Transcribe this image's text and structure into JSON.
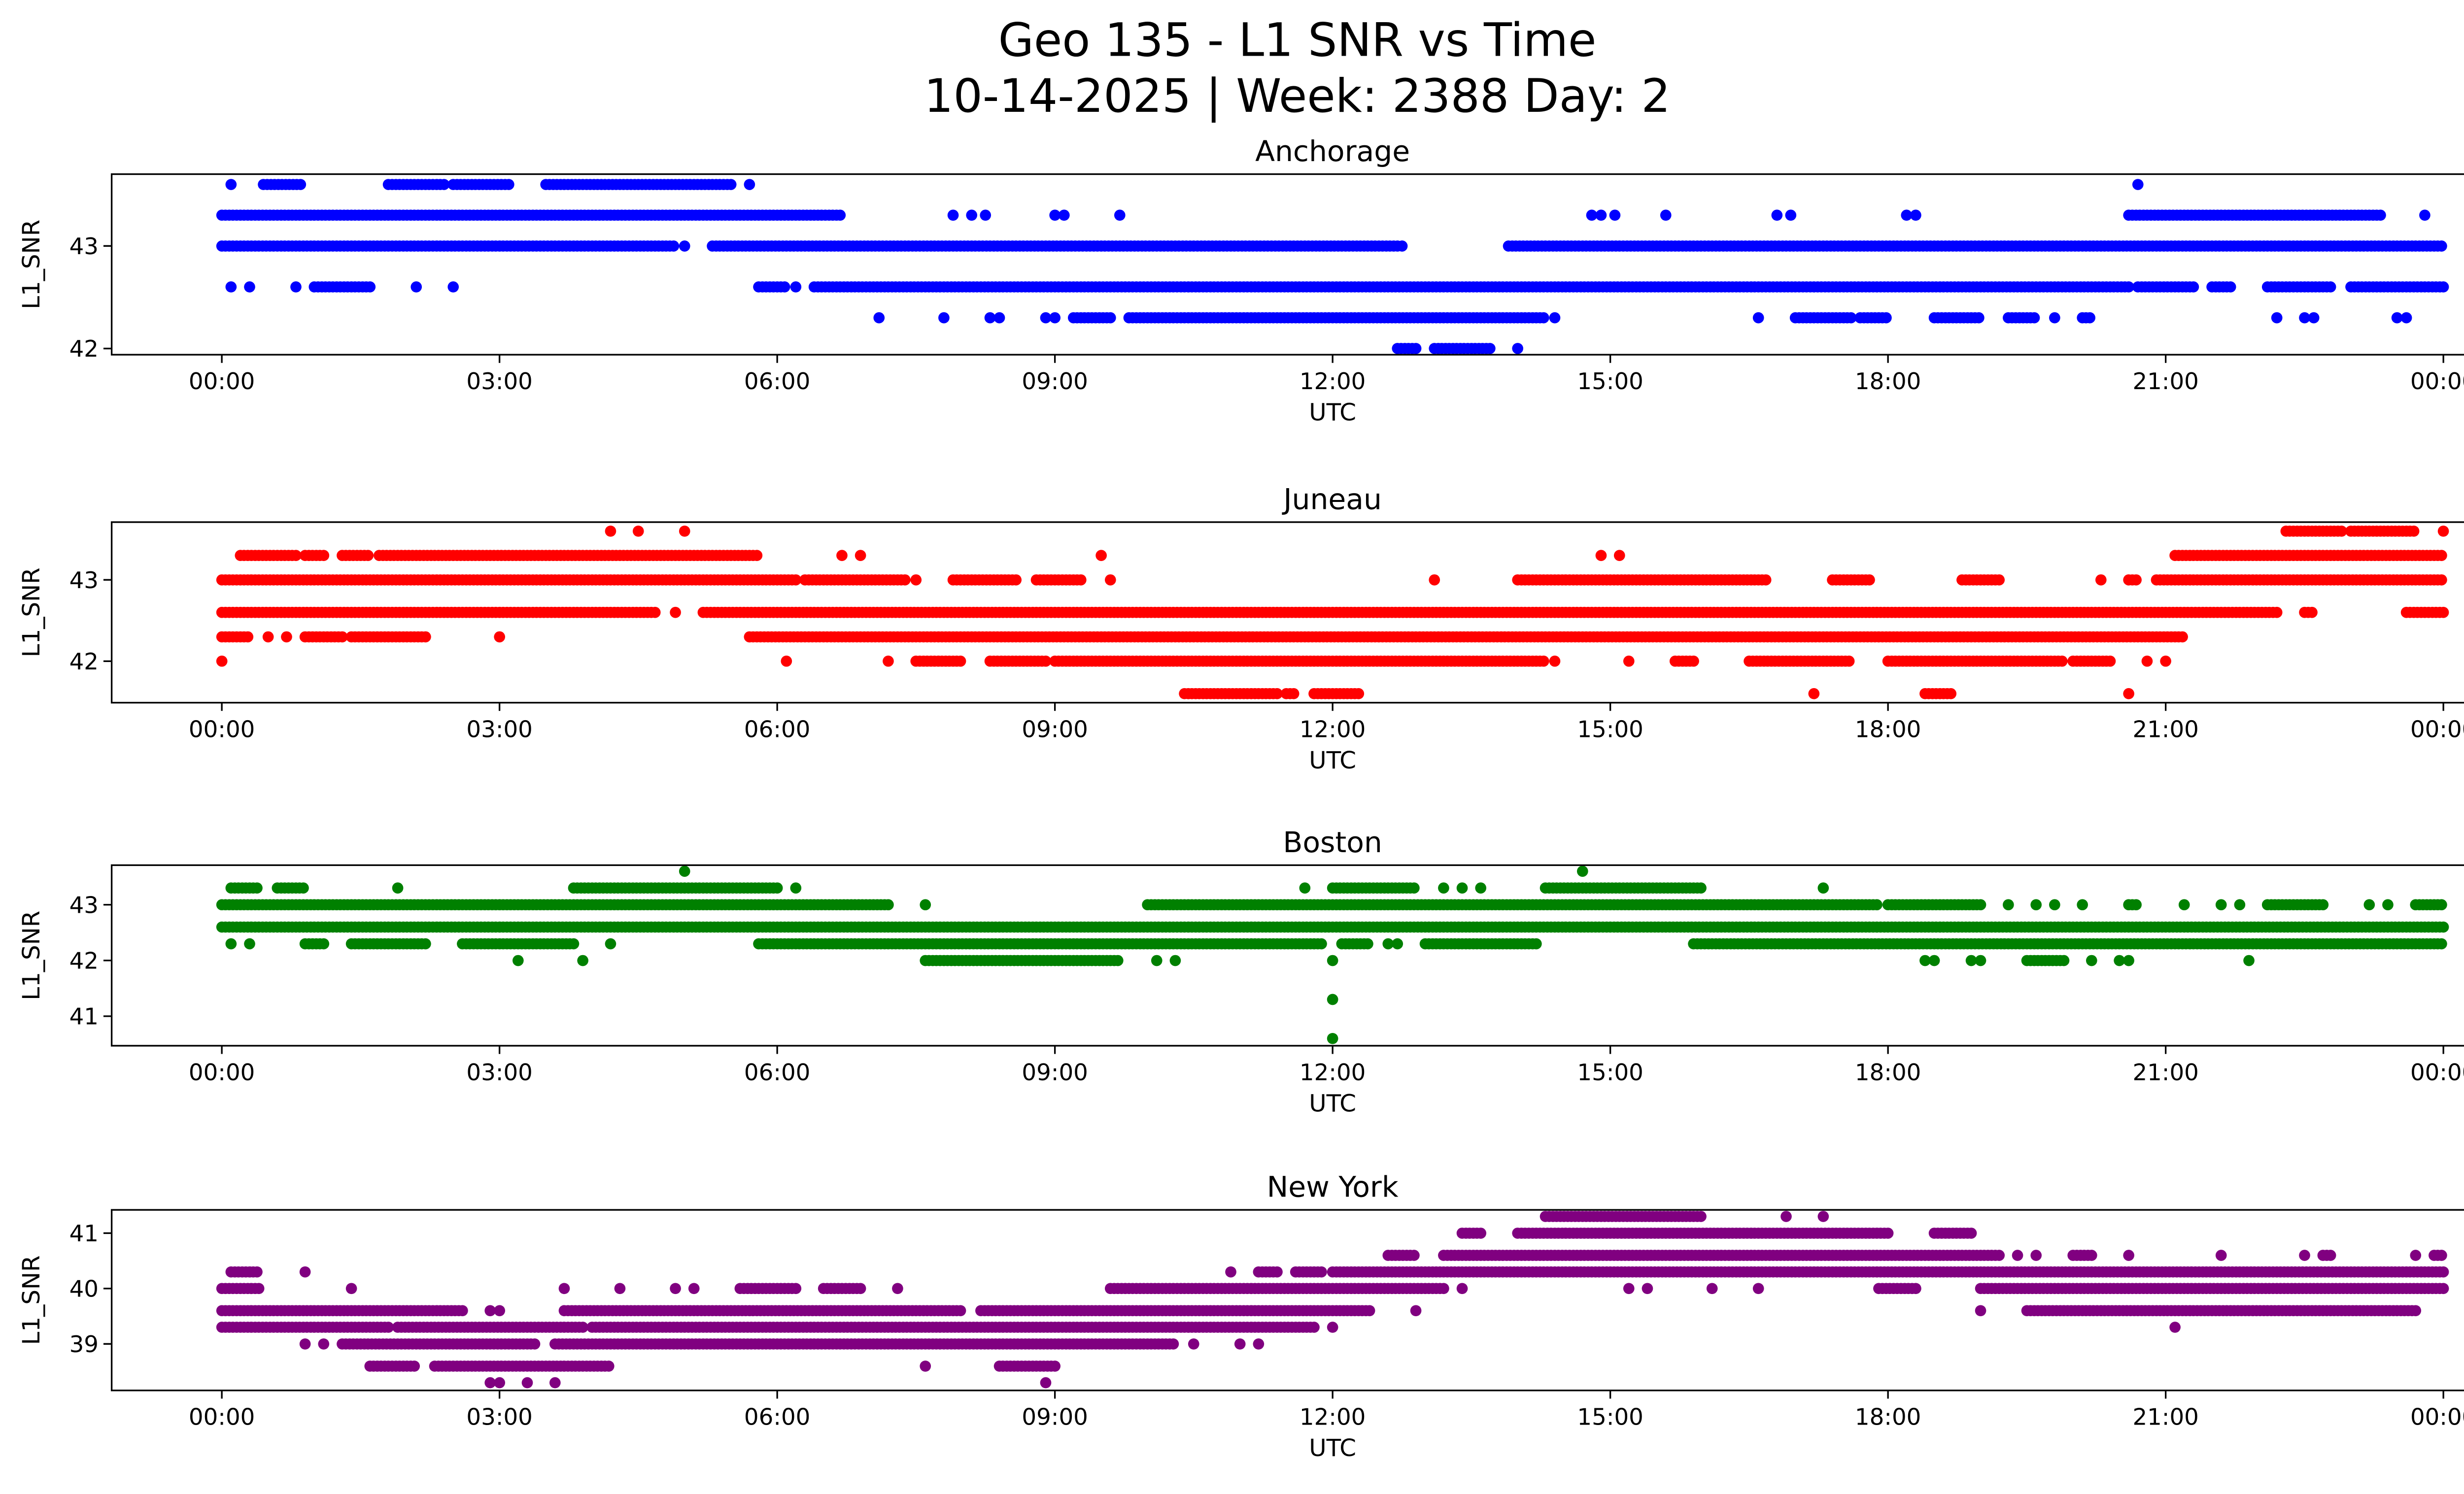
{
  "chart_data": {
    "type": "scatter",
    "title": "Geo 135 - L1 SNR vs Time",
    "subtitle": "10-14-2025 | Week: 2388 Day: 2",
    "panels": [
      {
        "title": "Anchorage",
        "xlabel": "UTC",
        "ylabel": "L1_SNR",
        "color": "#0000ff",
        "xlim_hours": [
          -1.19,
          25.19
        ],
        "ylim": [
          41.94,
          43.7
        ],
        "yticks": [
          42,
          43
        ],
        "ytick_labels": [
          "42",
          "43"
        ],
        "bands": [
          {
            "level": 43.6,
            "segments": [
              [
                0.45,
                0.85
              ],
              [
                1.8,
                2.4
              ],
              [
                2.5,
                3.1
              ],
              [
                3.5,
                5.5
              ]
            ],
            "points": [
              0.1,
              5.7,
              20.7
            ]
          },
          {
            "level": 43.3,
            "segments": [
              [
                0,
                6.7
              ],
              [
                20.6,
                23.35
              ]
            ],
            "points": [
              7.9,
              8.1,
              8.25,
              9.0,
              9.1,
              9.7,
              14.8,
              14.9,
              15.05,
              15.6,
              16.8,
              16.95,
              18.2,
              18.3,
              23.8
            ]
          },
          {
            "level": 43.0,
            "segments": [
              [
                0,
                4.9
              ],
              [
                5.3,
                12.7
              ],
              [
                13.9,
                24
              ]
            ],
            "points": [
              5.0,
              12.75
            ]
          },
          {
            "level": 42.6,
            "segments": [
              [
                1.0,
                1.6
              ],
              [
                5.8,
                6.1
              ],
              [
                6.4,
                20.6
              ],
              [
                20.7,
                21.3
              ],
              [
                21.5,
                21.7
              ],
              [
                22.1,
                22.8
              ],
              [
                23,
                24
              ]
            ],
            "points": [
              0.1,
              0.3,
              0.8,
              2.1,
              2.5,
              6.2
            ]
          },
          {
            "level": 42.3,
            "segments": [
              [
                9.2,
                9.6
              ],
              [
                9.8,
                14.3
              ],
              [
                17.0,
                17.6
              ],
              [
                17.7,
                18.0
              ],
              [
                18.5,
                19.0
              ],
              [
                19.3,
                19.6
              ],
              [
                20.1,
                20.2
              ]
            ],
            "points": [
              7.1,
              7.8,
              8.3,
              8.4,
              8.9,
              9.0,
              14.4,
              16.6,
              19.8,
              22.2,
              22.5,
              22.6,
              23.5,
              23.6
            ]
          },
          {
            "level": 42.0,
            "segments": [
              [
                12.7,
                12.9
              ],
              [
                13.1,
                13.7
              ]
            ],
            "points": [
              14.0
            ]
          }
        ]
      },
      {
        "title": "Juneau",
        "xlabel": "UTC",
        "ylabel": "L1_SNR",
        "color": "#ff0000",
        "xlim_hours": [
          -1.19,
          25.19
        ],
        "ylim": [
          41.49,
          43.71
        ],
        "yticks": [
          42,
          43
        ],
        "ytick_labels": [
          "42",
          "43"
        ],
        "bands": [
          {
            "level": 43.6,
            "segments": [
              [
                22.3,
                22.9
              ],
              [
                23.0,
                23.7
              ]
            ],
            "points": [
              4.2,
              4.5,
              5.0,
              24.0
            ]
          },
          {
            "level": 43.3,
            "segments": [
              [
                0.2,
                0.8
              ],
              [
                0.9,
                1.1
              ],
              [
                1.3,
                1.6
              ],
              [
                1.7,
                5.8
              ],
              [
                21.1,
                24
              ]
            ],
            "points": [
              6.7,
              6.9,
              9.5,
              14.9,
              15.1
            ]
          },
          {
            "level": 43.0,
            "segments": [
              [
                0,
                6.2
              ],
              [
                6.3,
                7.4
              ],
              [
                7.9,
                8.6
              ],
              [
                8.8,
                9.3
              ],
              [
                14.0,
                16.7
              ],
              [
                17.4,
                17.8
              ],
              [
                18.8,
                19.2
              ],
              [
                20.6,
                20.7
              ],
              [
                20.9,
                24
              ]
            ],
            "points": [
              7.5,
              9.6,
              13.1,
              20.3
            ]
          },
          {
            "level": 42.6,
            "segments": [
              [
                0,
                4.7
              ],
              [
                5.2,
                22.2
              ],
              [
                22.5,
                22.6
              ],
              [
                23.6,
                24
              ]
            ],
            "points": [
              4.9
            ]
          },
          {
            "level": 42.3,
            "segments": [
              [
                0,
                0.3
              ],
              [
                0.9,
                1.3
              ],
              [
                1.4,
                2.2
              ],
              [
                5.7,
                21.2
              ]
            ],
            "points": [
              0.5,
              0.7,
              3.0
            ]
          },
          {
            "level": 42.0,
            "segments": [
              [
                7.5,
                8.0
              ],
              [
                8.3,
                8.9
              ],
              [
                9.0,
                14.3
              ],
              [
                15.7,
                15.9
              ],
              [
                16.5,
                17.6
              ],
              [
                18.0,
                19.9
              ],
              [
                20.0,
                20.4
              ]
            ],
            "points": [
              0,
              6.1,
              7.2,
              14.4,
              15.2,
              20.8,
              21.0
            ]
          },
          {
            "level": 41.6,
            "segments": [
              [
                10.4,
                11.4
              ],
              [
                11.5,
                11.6
              ],
              [
                11.8,
                12.3
              ],
              [
                18.4,
                18.7
              ]
            ],
            "points": [
              17.2,
              20.6
            ]
          }
        ]
      },
      {
        "title": "Boston",
        "xlabel": "UTC",
        "ylabel": "L1_SNR",
        "color": "#008000",
        "xlim_hours": [
          -1.19,
          25.19
        ],
        "ylim": [
          40.47,
          43.71
        ],
        "yticks": [
          41,
          42,
          43
        ],
        "ytick_labels": [
          "41",
          "42",
          "43"
        ],
        "bands": [
          {
            "level": 43.6,
            "segments": [],
            "points": [
              5.0,
              14.7
            ]
          },
          {
            "level": 43.3,
            "segments": [
              [
                0.1,
                0.4
              ],
              [
                0.6,
                0.9
              ],
              [
                3.8,
                6.0
              ],
              [
                12.0,
                12.9
              ],
              [
                14.3,
                16.0
              ]
            ],
            "points": [
              1.9,
              6.2,
              11.7,
              13.2,
              13.4,
              13.6,
              17.3
            ]
          },
          {
            "level": 43.0,
            "segments": [
              [
                0,
                7.2
              ],
              [
                10.0,
                17.9
              ],
              [
                18.0,
                19.0
              ],
              [
                20.6,
                20.7
              ],
              [
                22.1,
                22.7
              ],
              [
                23.7,
                24
              ]
            ],
            "points": [
              7.6,
              19.3,
              19.6,
              19.8,
              20.1,
              21.2,
              21.6,
              21.8,
              23.2,
              23.4
            ]
          },
          {
            "level": 42.6,
            "segments": [
              [
                0,
                24
              ]
            ],
            "points": []
          },
          {
            "level": 42.3,
            "segments": [
              [
                0.9,
                1.1
              ],
              [
                1.4,
                2.2
              ],
              [
                2.6,
                3.8
              ],
              [
                5.8,
                11.9
              ],
              [
                12.1,
                12.4
              ],
              [
                13.0,
                14.2
              ],
              [
                15.9,
                24
              ]
            ],
            "points": [
              0.1,
              0.3,
              4.2,
              12.6,
              12.7
            ]
          },
          {
            "level": 42.0,
            "segments": [
              [
                7.6,
                9.7
              ],
              [
                19.5,
                19.9
              ]
            ],
            "points": [
              3.2,
              3.9,
              10.1,
              10.3,
              12.0,
              18.4,
              18.5,
              18.9,
              19.0,
              20.2,
              20.5,
              20.6,
              21.9
            ]
          },
          {
            "level": 41.3,
            "segments": [],
            "points": [
              12.0
            ]
          },
          {
            "level": 40.6,
            "segments": [],
            "points": [
              12.0
            ]
          }
        ]
      },
      {
        "title": "New York",
        "xlabel": "UTC",
        "ylabel": "L1_SNR",
        "color": "#800080",
        "xlim_hours": [
          -1.19,
          25.19
        ],
        "ylim": [
          38.16,
          41.42
        ],
        "yticks": [
          39,
          40,
          41
        ],
        "ytick_labels": [
          "39",
          "40",
          "41"
        ],
        "bands": [
          {
            "level": 41.3,
            "segments": [
              [
                14.3,
                16.0
              ]
            ],
            "points": [
              16.9,
              17.3
            ]
          },
          {
            "level": 41.0,
            "segments": [
              [
                13.4,
                13.6
              ],
              [
                14.0,
                18.0
              ],
              [
                18.5,
                18.9
              ]
            ],
            "points": []
          },
          {
            "level": 40.6,
            "segments": [
              [
                12.6,
                12.9
              ],
              [
                13.2,
                19.2
              ],
              [
                20.0,
                20.2
              ],
              [
                22.7,
                22.8
              ],
              [
                23.9,
                24
              ]
            ],
            "points": [
              19.4,
              19.6,
              20.6,
              21.6,
              22.5,
              23.7
            ]
          },
          {
            "level": 40.3,
            "segments": [
              [
                0.1,
                0.4
              ],
              [
                11.2,
                11.4
              ],
              [
                11.6,
                11.9
              ],
              [
                12.0,
                24
              ]
            ],
            "points": [
              0.9,
              10.9
            ]
          },
          {
            "level": 40.0,
            "segments": [
              [
                0,
                0.4
              ],
              [
                5.6,
                6.2
              ],
              [
                6.5,
                6.9
              ],
              [
                9.6,
                13.2
              ],
              [
                17.9,
                18.3
              ],
              [
                19.0,
                24
              ]
            ],
            "points": [
              1.4,
              3.7,
              4.3,
              4.9,
              5.1,
              7.3,
              13.4,
              15.2,
              15.4,
              16.1,
              16.6
            ]
          },
          {
            "level": 39.6,
            "segments": [
              [
                0,
                2.6
              ],
              [
                3.7,
                8.0
              ],
              [
                8.2,
                12.4
              ],
              [
                19.5,
                23.7
              ]
            ],
            "points": [
              2.9,
              3.0,
              12.9,
              19.0
            ]
          },
          {
            "level": 39.3,
            "segments": [
              [
                0,
                1.8
              ],
              [
                1.9,
                3.9
              ],
              [
                4.0,
                11.8
              ]
            ],
            "points": [
              12.0,
              21.1
            ]
          },
          {
            "level": 39.0,
            "segments": [
              [
                1.3,
                3.4
              ],
              [
                3.6,
                10.3
              ]
            ],
            "points": [
              0.9,
              1.1,
              10.5,
              11.0,
              11.2
            ]
          },
          {
            "level": 38.6,
            "segments": [
              [
                1.6,
                2.1
              ],
              [
                2.3,
                4.2
              ],
              [
                8.4,
                9.0
              ]
            ],
            "points": [
              7.6
            ]
          },
          {
            "level": 38.3,
            "segments": [],
            "points": [
              2.9,
              3.0,
              3.3,
              3.6,
              8.9
            ]
          }
        ]
      }
    ],
    "xticks_hours": [
      0,
      3,
      6,
      9,
      12,
      15,
      18,
      21,
      24
    ],
    "xtick_labels": [
      "00:00",
      "03:00",
      "06:00",
      "09:00",
      "12:00",
      "15:00",
      "18:00",
      "21:00",
      "00:00"
    ],
    "grid": false,
    "legend": "none"
  }
}
